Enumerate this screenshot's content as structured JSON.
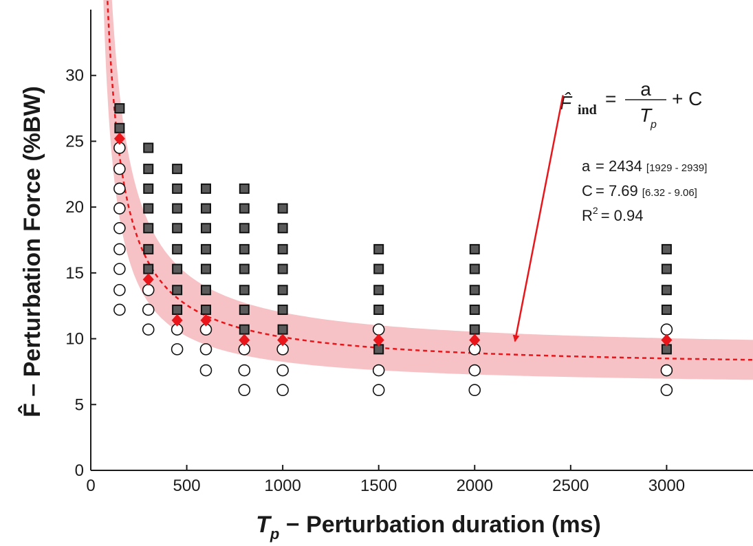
{
  "chart_data": {
    "type": "scatter",
    "title": "",
    "xlabel": {
      "symbol": "T",
      "subscript": "p",
      "text": " − Perturbation duration (ms)"
    },
    "ylabel": "F̂ – Perturbation Force (%BW)",
    "xlim": [
      0,
      3450
    ],
    "ylim": [
      0,
      35
    ],
    "xticks": [
      0,
      500,
      1000,
      1500,
      2000,
      2500,
      3000
    ],
    "yticks": [
      0,
      5,
      10,
      15,
      20,
      25,
      30
    ],
    "grid": false,
    "legend": "none",
    "colors": {
      "positive": "#5a5a5a",
      "negative": "#ffffff",
      "estimate": "#e8161b",
      "fit": "#e8161b",
      "band": "#f6c2c5",
      "arrow": "#e8161b"
    },
    "series": [
      {
        "marker": "square",
        "points": [
          [
            150,
            26
          ],
          [
            150,
            27.5
          ],
          [
            300,
            15.3
          ],
          [
            300,
            16.8
          ],
          [
            300,
            18.4
          ],
          [
            300,
            19.9
          ],
          [
            300,
            21.4
          ],
          [
            300,
            22.9
          ],
          [
            300,
            24.5
          ],
          [
            450,
            12.2
          ],
          [
            450,
            13.7
          ],
          [
            450,
            15.3
          ],
          [
            450,
            16.8
          ],
          [
            450,
            18.4
          ],
          [
            450,
            19.9
          ],
          [
            450,
            21.4
          ],
          [
            450,
            22.9
          ],
          [
            600,
            12.2
          ],
          [
            600,
            13.7
          ],
          [
            600,
            15.3
          ],
          [
            600,
            16.8
          ],
          [
            600,
            18.4
          ],
          [
            600,
            19.9
          ],
          [
            600,
            21.4
          ],
          [
            800,
            10.7
          ],
          [
            800,
            12.2
          ],
          [
            800,
            13.7
          ],
          [
            800,
            15.3
          ],
          [
            800,
            16.8
          ],
          [
            800,
            18.4
          ],
          [
            800,
            19.9
          ],
          [
            800,
            21.4
          ],
          [
            1000,
            10.7
          ],
          [
            1000,
            12.2
          ],
          [
            1000,
            13.7
          ],
          [
            1000,
            15.3
          ],
          [
            1000,
            16.8
          ],
          [
            1000,
            18.4
          ],
          [
            1000,
            19.9
          ],
          [
            1500,
            9.2
          ],
          [
            1500,
            12.2
          ],
          [
            1500,
            13.7
          ],
          [
            1500,
            15.3
          ],
          [
            1500,
            16.8
          ],
          [
            2000,
            10.7
          ],
          [
            2000,
            12.2
          ],
          [
            2000,
            13.7
          ],
          [
            2000,
            15.3
          ],
          [
            2000,
            16.8
          ],
          [
            3000,
            9.2
          ],
          [
            3000,
            12.2
          ],
          [
            3000,
            13.7
          ],
          [
            3000,
            15.3
          ],
          [
            3000,
            16.8
          ]
        ]
      },
      {
        "marker": "circle",
        "points": [
          [
            150,
            12.2
          ],
          [
            150,
            13.7
          ],
          [
            150,
            15.3
          ],
          [
            150,
            16.8
          ],
          [
            150,
            18.4
          ],
          [
            150,
            19.9
          ],
          [
            150,
            21.4
          ],
          [
            150,
            22.9
          ],
          [
            150,
            24.5
          ],
          [
            300,
            10.7
          ],
          [
            300,
            12.2
          ],
          [
            300,
            13.7
          ],
          [
            450,
            9.2
          ],
          [
            450,
            10.7
          ],
          [
            600,
            7.6
          ],
          [
            600,
            9.2
          ],
          [
            600,
            10.7
          ],
          [
            800,
            6.1
          ],
          [
            800,
            7.6
          ],
          [
            800,
            9.2
          ],
          [
            1000,
            6.1
          ],
          [
            1000,
            7.6
          ],
          [
            1000,
            9.2
          ],
          [
            1500,
            6.1
          ],
          [
            1500,
            7.6
          ],
          [
            1500,
            10.7
          ],
          [
            2000,
            6.1
          ],
          [
            2000,
            7.6
          ],
          [
            2000,
            9.2
          ],
          [
            3000,
            6.1
          ],
          [
            3000,
            7.6
          ],
          [
            3000,
            10.7
          ]
        ]
      },
      {
        "marker": "diamond",
        "points": [
          [
            150,
            25.2
          ],
          [
            300,
            14.5
          ],
          [
            450,
            11.4
          ],
          [
            600,
            11.4
          ],
          [
            800,
            9.9
          ],
          [
            1000,
            9.9
          ],
          [
            1500,
            9.9
          ],
          [
            2000,
            9.9
          ],
          [
            3000,
            9.9
          ]
        ]
      }
    ],
    "fit": {
      "model": "F = a/Tp + C",
      "a": 2434,
      "C": 7.69,
      "a_ci": [
        1929,
        2939
      ],
      "C_ci": [
        6.32,
        9.06
      ],
      "style": "dashed"
    },
    "equation": {
      "lhs_symbol": "F̂",
      "lhs_subscript": "ind",
      "equals": "=",
      "numerator": "a",
      "denominator_symbol": "T",
      "denominator_subscript": "p",
      "tail": "+ C"
    },
    "stats": [
      {
        "label": "a",
        "value": "= 2434",
        "ci": "[1929 - 2939]"
      },
      {
        "label": "C",
        "value": "= 7.69",
        "ci": "[6.32 - 9.06]"
      },
      {
        "label": "R",
        "sup": "2",
        "value": "= 0.94"
      }
    ],
    "annotation_arrow": {
      "from": [
        2460,
        28.5
      ],
      "to": [
        2210,
        9.8
      ]
    }
  }
}
